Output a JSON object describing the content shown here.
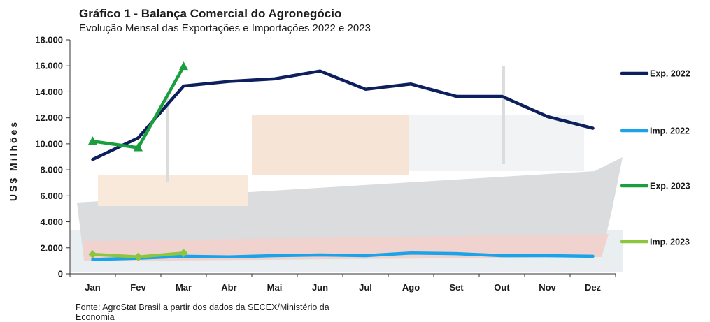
{
  "header": {
    "title": "Gráfico 1 - Balança Comercial do Agronegócio",
    "subtitle": "Evolução  Mensal das Exportações e Importações 2022 e 2023"
  },
  "footer": {
    "source": "Fonte: AgroStat Brasil a partir dos dados da SECEX/Ministério  da Economia"
  },
  "chart_data": {
    "type": "line",
    "title": "Gráfico 1 - Balança Comercial do Agronegócio",
    "subtitle": "Evolução  Mensal das Exportações e Importações 2022 e 2023",
    "xlabel": "",
    "ylabel": "US$ Milhões",
    "ylim": [
      0,
      18000
    ],
    "yticks": [
      0,
      2000,
      4000,
      6000,
      8000,
      10000,
      12000,
      14000,
      16000,
      18000
    ],
    "ytick_labels": [
      "0",
      "2.000",
      "4.000",
      "6.000",
      "8.000",
      "10.000",
      "12.000",
      "14.000",
      "16.000",
      "18.000"
    ],
    "categories": [
      "Jan",
      "Fev",
      "Mar",
      "Abr",
      "Mai",
      "Jun",
      "Jul",
      "Ago",
      "Set",
      "Out",
      "Nov",
      "Dez"
    ],
    "legend_position": "right",
    "background": "container ship photo (faded)",
    "series": [
      {
        "name": "Exp. 2022",
        "color": "#0d1f5c",
        "marker": "none",
        "values": [
          8800,
          10450,
          14450,
          14800,
          15000,
          15600,
          14200,
          14600,
          13650,
          13650,
          12100,
          11200
        ]
      },
      {
        "name": "Imp. 2022",
        "color": "#1aa3e8",
        "marker": "none",
        "values": [
          1100,
          1200,
          1350,
          1300,
          1400,
          1450,
          1400,
          1600,
          1550,
          1400,
          1400,
          1350
        ]
      },
      {
        "name": "Exp. 2023",
        "color": "#1a9e3e",
        "marker": "triangle",
        "values": [
          10200,
          9700,
          15950,
          null,
          null,
          null,
          null,
          null,
          null,
          null,
          null,
          null
        ]
      },
      {
        "name": "Imp. 2023",
        "color": "#8cc63f",
        "marker": "diamond",
        "values": [
          1500,
          1300,
          1600,
          null,
          null,
          null,
          null,
          null,
          null,
          null,
          null,
          null
        ]
      }
    ]
  }
}
